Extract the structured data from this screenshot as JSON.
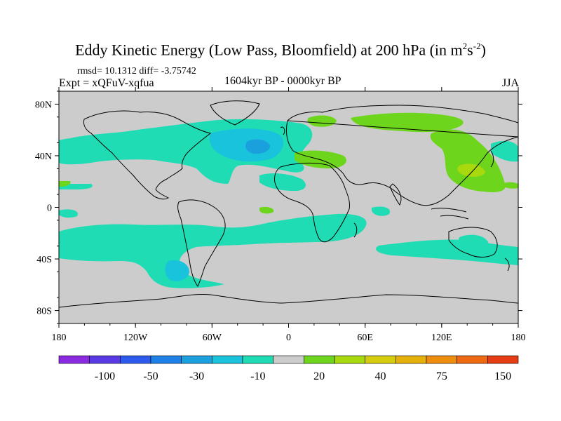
{
  "title": {
    "prefix": "Eddy Kinetic Energy (Low Pass, Bloomfield) at 200 hPa (in m",
    "sup1": "2",
    "mid": "s",
    "sup2": "-2",
    "suffix": ")"
  },
  "stats": "rmsd= 10.1312 diff= -3.75742",
  "expt": "Expt = xQFuV-xqfua",
  "period": "1604kyr BP - 0000kyr BP",
  "season": "JJA",
  "map": {
    "lon_range": [
      -180,
      180
    ],
    "lat_range": [
      -90,
      90
    ],
    "lat_ticks": [
      {
        "value": 80,
        "label": "80N"
      },
      {
        "value": 40,
        "label": "40N"
      },
      {
        "value": 0,
        "label": "0"
      },
      {
        "value": -40,
        "label": "40S"
      },
      {
        "value": -80,
        "label": "80S"
      }
    ],
    "lon_ticks": [
      {
        "value": -180,
        "label": "180"
      },
      {
        "value": -120,
        "label": "120W"
      },
      {
        "value": -60,
        "label": "60W"
      },
      {
        "value": 0,
        "label": "0"
      },
      {
        "value": 60,
        "label": "60E"
      },
      {
        "value": 120,
        "label": "120E"
      },
      {
        "value": 180,
        "label": "180"
      }
    ],
    "colors": {
      "ocean_land": "#cccccc",
      "neg_light": "#1fdcb4",
      "neg_mid": "#19c3dc",
      "neg_dark": "#1aa0dc",
      "pos_light": "#6dd61c",
      "pos_mid": "#a8d80e",
      "coast": "#000000"
    }
  },
  "colorbar": {
    "colors": [
      "#8a2be2",
      "#5a3ae6",
      "#2e5af0",
      "#1e7fe8",
      "#1aa0dc",
      "#19c3dc",
      "#1fdcb4",
      "#cccccc",
      "#6dd61c",
      "#a8d80e",
      "#d4cc0c",
      "#e6b00a",
      "#ee8c0c",
      "#ef6812",
      "#e63c14"
    ],
    "labels": [
      {
        "boundary": 1.5,
        "label": "-100"
      },
      {
        "boundary": 3,
        "label": "-50"
      },
      {
        "boundary": 4.5,
        "label": "-30"
      },
      {
        "boundary": 6.5,
        "label": "-10"
      },
      {
        "boundary": 8.5,
        "label": "20"
      },
      {
        "boundary": 10.5,
        "label": "40"
      },
      {
        "boundary": 12.5,
        "label": "75"
      },
      {
        "boundary": 14.5,
        "label": "150"
      }
    ]
  }
}
